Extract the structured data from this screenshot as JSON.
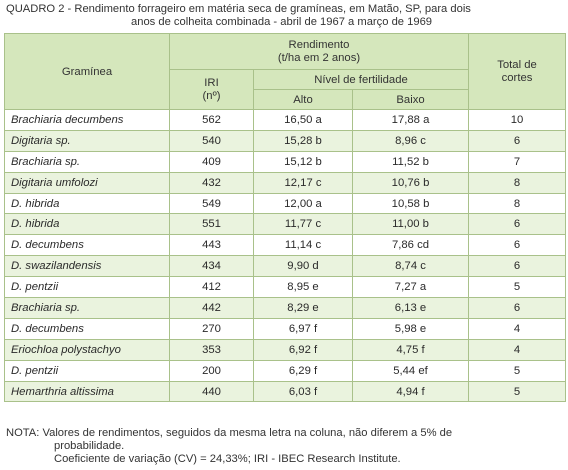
{
  "caption": {
    "line1": "QUADRO 2 - Rendimento forrageiro em matéria seca de gramíneas, em Matão, SP, para dois",
    "line2": "anos de colheita combinada - abril de 1967 a março de 1969"
  },
  "table": {
    "headers": {
      "graminea": "Gramínea",
      "rendimento_title": "Rendimento",
      "rendimento_unit": "(t/ha em 2 anos)",
      "iri": "IRI",
      "iri_unit": "(nº)",
      "nivel_fertilidade": "Nível de fertilidade",
      "alto": "Alto",
      "baixo": "Baixo",
      "total_line1": "Total de",
      "total_line2": "cortes"
    },
    "rows": [
      {
        "graminea": "Brachiaria decumbens",
        "iri": "562",
        "alto": "16,50 a",
        "baixo": "17,88 a",
        "cortes": "10"
      },
      {
        "graminea": "Digitaria sp.",
        "iri": "540",
        "alto": "15,28 b",
        "baixo": "8,96 c",
        "cortes": "6"
      },
      {
        "graminea": "Brachiaria sp.",
        "iri": "409",
        "alto": "15,12 b",
        "baixo": "11,52 b",
        "cortes": "7"
      },
      {
        "graminea": "Digitaria umfolozi",
        "iri": "432",
        "alto": "12,17 c",
        "baixo": "10,76 b",
        "cortes": "8"
      },
      {
        "graminea": "D. hibrida",
        "iri": "549",
        "alto": "12,00 a",
        "baixo": "10,58 b",
        "cortes": "8"
      },
      {
        "graminea": "D. hibrida",
        "iri": "551",
        "alto": "11,77 c",
        "baixo": "11,00 b",
        "cortes": "6"
      },
      {
        "graminea": "D. decumbens",
        "iri": "443",
        "alto": "11,14 c",
        "baixo": "7,86 cd",
        "cortes": "6"
      },
      {
        "graminea": "D. swazilandensis",
        "iri": "434",
        "alto": "9,90 d",
        "baixo": "8,74 c",
        "cortes": "6"
      },
      {
        "graminea": "D. pentzii",
        "iri": "412",
        "alto": "8,95 e",
        "baixo": "7,27 a",
        "cortes": "5"
      },
      {
        "graminea": "Brachiaria sp.",
        "iri": "442",
        "alto": "8,29 e",
        "baixo": "6,13 e",
        "cortes": "6"
      },
      {
        "graminea": "D. decumbens",
        "iri": "270",
        "alto": "6,97 f",
        "baixo": "5,98 e",
        "cortes": "4"
      },
      {
        "graminea": "Eriochloa polystachyo",
        "iri": "353",
        "alto": "6,92 f",
        "baixo": "4,75 f",
        "cortes": "4"
      },
      {
        "graminea": "D. pentzii",
        "iri": "200",
        "alto": "6,29 f",
        "baixo": "5,44 ef",
        "cortes": "5"
      },
      {
        "graminea": "Hemarthria altissima",
        "iri": "440",
        "alto": "6,03 f",
        "baixo": "4,94 f",
        "cortes": "5"
      }
    ]
  },
  "note": {
    "line1": "NOTA: Valores de rendimentos, seguidos da mesma letra na coluna, não diferem a 5% de",
    "line2": "probabilidade.",
    "line3": "Coeficiente de variação (CV) = 24,33%; IRI - IBEC Research Institute."
  },
  "colors": {
    "header_bg": "#d5e7bc",
    "stripe_bg": "#eaf3de",
    "border": "#a9c18a"
  }
}
